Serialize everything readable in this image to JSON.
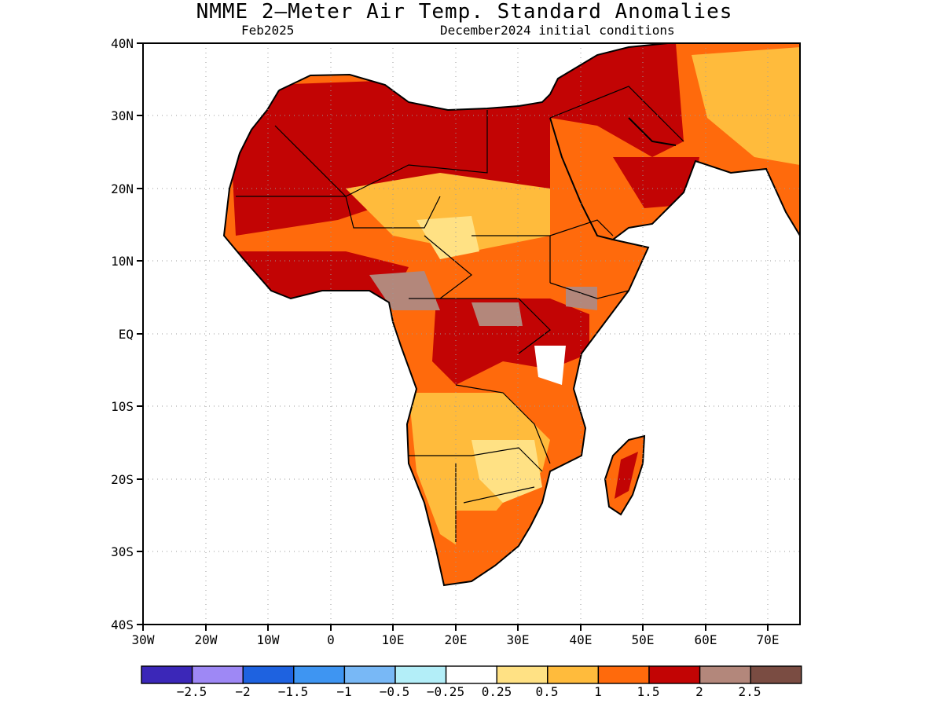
{
  "title": "NMME 2—Meter Air Temp. Standard Anomalies",
  "subtitle_left": "Feb2025",
  "subtitle_right": "December2024 initial conditions",
  "lat_labels": [
    "40N",
    "30N",
    "20N",
    "10N",
    "EQ",
    "10S",
    "20S",
    "30S",
    "40S"
  ],
  "lon_labels": [
    "30W",
    "20W",
    "10W",
    "0",
    "10E",
    "20E",
    "30E",
    "40E",
    "50E",
    "60E",
    "70E"
  ],
  "colorbar": {
    "colors": [
      "#3b27b8",
      "#9e88f5",
      "#1e62e0",
      "#3e95f2",
      "#78b8f6",
      "#b3eef8",
      "#ffffff",
      "#ffe184",
      "#ffbb3c",
      "#ff6a0c",
      "#c20404",
      "#b3877b",
      "#7a4c42"
    ],
    "labels": [
      "−2.5",
      "−2",
      "−1.5",
      "−1",
      "−0.5",
      "−0.25",
      "0.25",
      "0.5",
      "1",
      "1.5",
      "2",
      "2.5"
    ]
  },
  "map": {
    "extent": {
      "lon_min": -30,
      "lon_max": 75,
      "lat_min": -40,
      "lat_max": 40
    },
    "gridline_style": "dotted",
    "colors": {
      "land_outline": "#000000",
      "ocean": "#ffffff"
    }
  }
}
